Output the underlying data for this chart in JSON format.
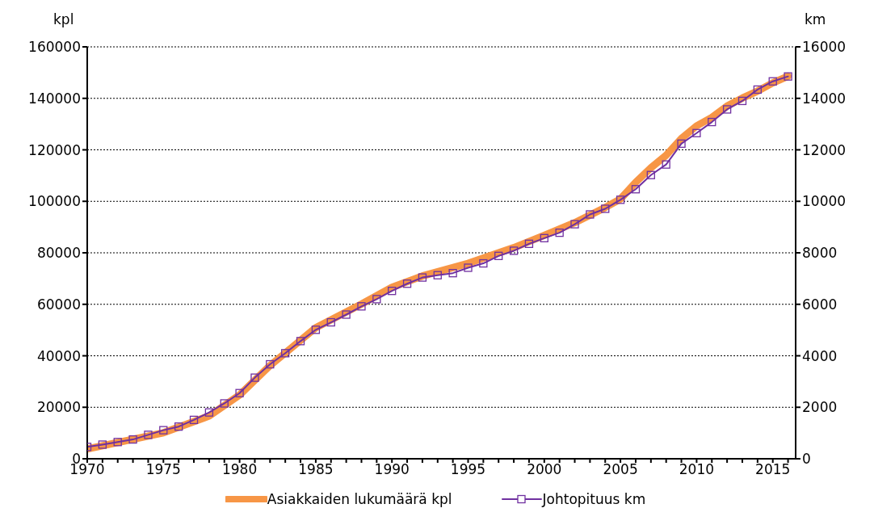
{
  "chart_data": {
    "type": "line",
    "xlabel": null,
    "ylabel": "kpl",
    "y2label": "km",
    "xlim": [
      1970,
      2016.5
    ],
    "xticks": [
      1970,
      {
        "value": 1971,
        "label": null
      },
      {
        "value": 1972,
        "label": null
      },
      {
        "value": 1973,
        "label": null
      },
      {
        "value": 1974,
        "label": null
      },
      1975,
      {
        "value": 1976,
        "label": null
      },
      {
        "value": 1977,
        "label": null
      },
      {
        "value": 1978,
        "label": null
      },
      {
        "value": 1979,
        "label": null
      },
      1980,
      {
        "value": 1981,
        "label": null
      },
      {
        "value": 1982,
        "label": null
      },
      {
        "value": 1983,
        "label": null
      },
      {
        "value": 1984,
        "label": null
      },
      1985,
      {
        "value": 1986,
        "label": null
      },
      {
        "value": 1987,
        "label": null
      },
      {
        "value": 1988,
        "label": null
      },
      {
        "value": 1989,
        "label": null
      },
      1990,
      {
        "value": 1991,
        "label": null
      },
      {
        "value": 1992,
        "label": null
      },
      {
        "value": 1993,
        "label": null
      },
      {
        "value": 1994,
        "label": null
      },
      1995,
      {
        "value": 1996,
        "label": null
      },
      {
        "value": 1997,
        "label": null
      },
      {
        "value": 1998,
        "label": null
      },
      {
        "value": 1999,
        "label": null
      },
      2000,
      {
        "value": 2001,
        "label": null
      },
      {
        "value": 2002,
        "label": null
      },
      {
        "value": 2003,
        "label": null
      },
      {
        "value": 2004,
        "label": null
      },
      2005,
      {
        "value": 2006,
        "label": null
      },
      {
        "value": 2007,
        "label": null
      },
      {
        "value": 2008,
        "label": null
      },
      {
        "value": 2009,
        "label": null
      },
      2010,
      {
        "value": 2011,
        "label": null
      },
      {
        "value": 2012,
        "label": null
      },
      {
        "value": 2013,
        "label": null
      },
      {
        "value": 2014,
        "label": null
      },
      2015,
      {
        "value": 2016,
        "label": null
      }
    ],
    "ylim": [
      0,
      160000
    ],
    "yticks": [
      0,
      20000,
      40000,
      60000,
      80000,
      100000,
      120000,
      140000,
      160000
    ],
    "y2lim": [
      0,
      16000
    ],
    "y2ticks": [
      0,
      2000,
      4000,
      6000,
      8000,
      10000,
      12000,
      14000,
      16000
    ],
    "grid": "y",
    "legend": "bottom",
    "series": [
      {
        "name": "Asiakkaiden lukumäärä kpl",
        "color": "#f79646",
        "marker": "none",
        "x": [
          1970,
          1975,
          1978,
          1980,
          1982,
          1985,
          1988,
          1990,
          1992,
          1995,
          1998,
          2000,
          2002,
          2004,
          2005,
          2006,
          2007,
          2008,
          2009,
          2010,
          2011,
          2012,
          2013,
          2014,
          2015,
          2016
        ],
        "values": [
          3800,
          10100,
          16600,
          24800,
          36200,
          50900,
          60100,
          66600,
          71000,
          75900,
          82000,
          86800,
          91700,
          97600,
          100900,
          107400,
          113000,
          117900,
          124400,
          129300,
          132600,
          137000,
          140100,
          142800,
          146000,
          148600
        ]
      },
      {
        "name": "Johtopituus km",
        "color": "#7030a0",
        "marker": "square",
        "axis": "y2",
        "x": [
          1970,
          1971,
          1972,
          1973,
          1974,
          1975,
          1976,
          1977,
          1978,
          1979,
          1980,
          1981,
          1982,
          1983,
          1984,
          1985,
          1986,
          1987,
          1988,
          1989,
          1990,
          1991,
          1992,
          1993,
          1994,
          1995,
          1996,
          1997,
          1998,
          1999,
          2000,
          2001,
          2002,
          2003,
          2004,
          2005,
          2006,
          2007,
          2008,
          2009,
          2010,
          2011,
          2012,
          2013,
          2014,
          2015,
          2016
        ],
        "values": [
          460,
          550,
          650,
          750,
          930,
          1110,
          1250,
          1510,
          1800,
          2150,
          2550,
          3150,
          3670,
          4100,
          4570,
          5010,
          5300,
          5600,
          5920,
          6200,
          6520,
          6800,
          7040,
          7130,
          7210,
          7420,
          7590,
          7880,
          8080,
          8350,
          8570,
          8780,
          9110,
          9490,
          9710,
          10060,
          10470,
          11020,
          11430,
          12240,
          12650,
          13080,
          13570,
          13900,
          14340,
          14660,
          14850
        ]
      }
    ]
  }
}
